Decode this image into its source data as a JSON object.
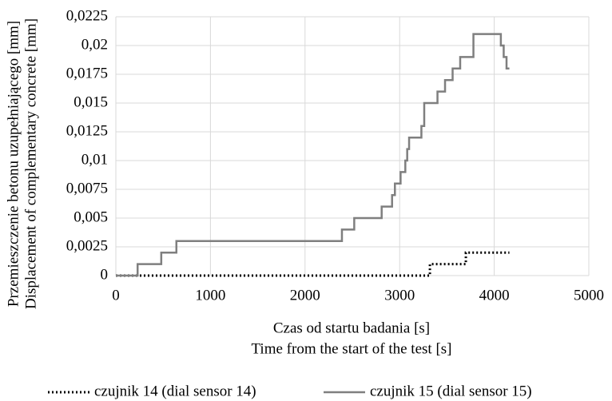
{
  "chart_data": {
    "type": "line",
    "ylabel": [
      "Przemieszczenie betonu uzupełniającego  [mm]",
      "Displacement of complementary concrete [mm]"
    ],
    "xlabel": [
      "Czas od startu badania [s]",
      "Time from the start of the test [s]"
    ],
    "xlim": [
      0,
      5000
    ],
    "xticks": [
      0,
      1000,
      2000,
      3000,
      4000,
      5000
    ],
    "ylim": [
      0,
      0.0225
    ],
    "yticks": [
      0,
      {
        "value": 0.0025,
        "label": "0,0025"
      },
      {
        "value": 0.005,
        "label": "0,005"
      },
      {
        "value": 0.0075,
        "label": "0,0075"
      },
      {
        "value": 0.01,
        "label": "0,01"
      },
      {
        "value": 0.0125,
        "label": "0,0125"
      },
      {
        "value": 0.015,
        "label": "0,015"
      },
      {
        "value": 0.0175,
        "label": "0,0175"
      },
      {
        "value": 0.02,
        "label": "0,02"
      },
      {
        "value": 0.0225,
        "label": "0,0225"
      }
    ],
    "grid": true,
    "legend": "bottom",
    "series": [
      {
        "name": "czujnik 14 (dial sensor 14)",
        "color": "#000000",
        "dash": "dotted",
        "x": [
          0,
          3320,
          3320,
          3700,
          3700,
          4160
        ],
        "values": [
          0,
          0,
          0.001,
          0.001,
          0.002,
          0.002
        ]
      },
      {
        "name": "czujnik 15 (dial sensor 15)",
        "color": "#7f7f7f",
        "dash": "solid",
        "x": [
          0,
          230,
          230,
          480,
          480,
          640,
          640,
          2390,
          2390,
          2520,
          2520,
          2810,
          2810,
          2920,
          2920,
          2950,
          2950,
          3010,
          3010,
          3060,
          3060,
          3080,
          3080,
          3100,
          3100,
          3230,
          3230,
          3260,
          3260,
          3400,
          3400,
          3480,
          3480,
          3560,
          3560,
          3640,
          3640,
          3780,
          3780,
          4070,
          4070,
          4100,
          4100,
          4130,
          4130,
          4160
        ],
        "values": [
          0,
          0,
          0.001,
          0.001,
          0.002,
          0.002,
          0.003,
          0.003,
          0.004,
          0.004,
          0.005,
          0.005,
          0.006,
          0.006,
          0.007,
          0.007,
          0.008,
          0.008,
          0.009,
          0.009,
          0.01,
          0.01,
          0.011,
          0.011,
          0.012,
          0.012,
          0.013,
          0.013,
          0.015,
          0.015,
          0.016,
          0.016,
          0.017,
          0.017,
          0.018,
          0.018,
          0.019,
          0.019,
          0.021,
          0.021,
          0.02,
          0.02,
          0.019,
          0.019,
          0.018,
          0.018
        ]
      }
    ]
  }
}
